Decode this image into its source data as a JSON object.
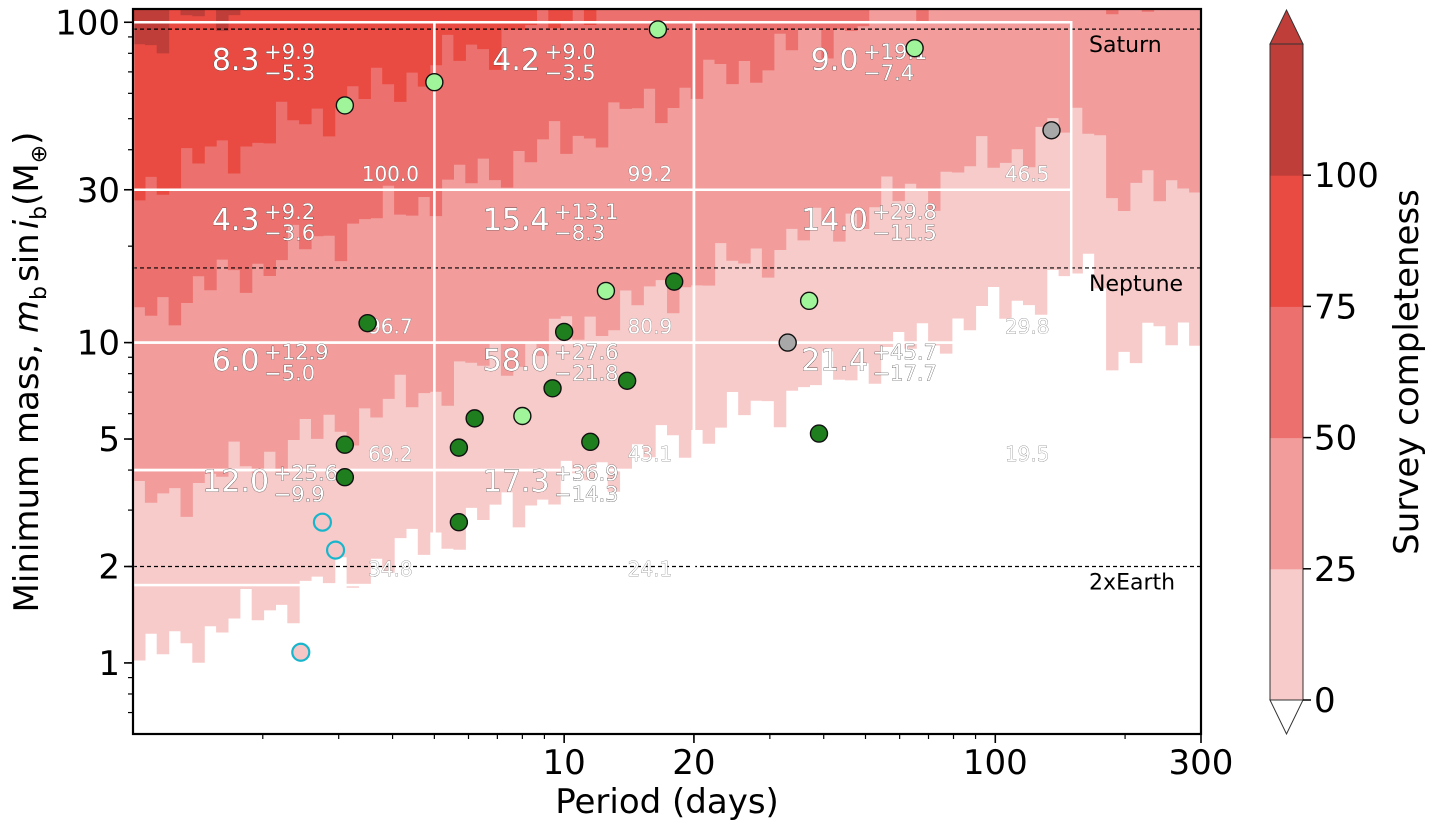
{
  "chart_data": {
    "type": "heatmap",
    "title": "",
    "xlabel": "Period (days)",
    "ylabel": "Minimum mass, m_b sin i_b (M_⊕)",
    "ylabel_parts": {
      "prefix": "Minimum mass, ",
      "m": "m",
      "b1": "b",
      "sin": "sin",
      "i": "i",
      "b2": "b",
      "open": "(M",
      "sub": "⊕",
      "close": ")"
    },
    "xscale": "log",
    "yscale": "log",
    "xlim": [
      1.0,
      300
    ],
    "ylim": [
      0.6,
      110
    ],
    "x_ticks": [
      {
        "value": 10,
        "label": "10"
      },
      {
        "value": 20,
        "label": "20"
      },
      {
        "value": 100,
        "label": "100"
      },
      {
        "value": 300,
        "label": "300"
      }
    ],
    "y_ticks": [
      {
        "value": 1,
        "label": "1"
      },
      {
        "value": 2,
        "label": "2"
      },
      {
        "value": 5,
        "label": "5"
      },
      {
        "value": 10,
        "label": "10"
      },
      {
        "value": 30,
        "label": "30"
      },
      {
        "value": 100,
        "label": "100"
      }
    ],
    "colorbar": {
      "label": "Survey completeness",
      "ticks": [
        "0",
        "25",
        "50",
        "75",
        "100"
      ],
      "levels": [
        0,
        25,
        50,
        75,
        100
      ],
      "colors": [
        "#f7cbca",
        "#f29d9c",
        "#ec716e",
        "#e94b42",
        "#bf3e39"
      ],
      "extend": "both"
    },
    "reference_lines": [
      {
        "label": "Saturn",
        "mass": 95.2
      },
      {
        "label": "Neptune",
        "mass": 17.1
      },
      {
        "label": "2xEarth",
        "mass": 2.0
      }
    ],
    "grid_boundaries": {
      "period_edges": [
        1.0,
        5.0,
        20.0
      ],
      "period_edge_outer": 150,
      "mass_edges": [
        1.75,
        4.0,
        10.0,
        30.0,
        100.0
      ]
    },
    "cells": [
      {
        "period": [
          1,
          5
        ],
        "mass": [
          30,
          100
        ],
        "occurrence": "8.3",
        "err_plus": "+9.9",
        "err_minus": "−5.3",
        "completeness": "100.0"
      },
      {
        "period": [
          5,
          20
        ],
        "mass": [
          30,
          100
        ],
        "occurrence": "4.2",
        "err_plus": "+9.0",
        "err_minus": "−3.5",
        "completeness": "99.2"
      },
      {
        "period": [
          20,
          150
        ],
        "mass": [
          30,
          100
        ],
        "occurrence": "9.0",
        "err_plus": "+19.1",
        "err_minus": "−7.4",
        "completeness": "46.5"
      },
      {
        "period": [
          1,
          5
        ],
        "mass": [
          10,
          30
        ],
        "occurrence": "4.3",
        "err_plus": "+9.2",
        "err_minus": "−3.6",
        "completeness": "96.7"
      },
      {
        "period": [
          5,
          20
        ],
        "mass": [
          10,
          30
        ],
        "occurrence": "15.4",
        "err_plus": "+13.1",
        "err_minus": "−8.3",
        "completeness": "80.9"
      },
      {
        "period": [
          20,
          150
        ],
        "mass": [
          10,
          30
        ],
        "occurrence": "14.0",
        "err_plus": "+29.8",
        "err_minus": "−11.5",
        "completeness": "29.8"
      },
      {
        "period": [
          1,
          5
        ],
        "mass": [
          4,
          10
        ],
        "occurrence": "6.0",
        "err_plus": "+12.9",
        "err_minus": "−5.0",
        "completeness": "69.2"
      },
      {
        "period": [
          5,
          20
        ],
        "mass": [
          4,
          10
        ],
        "occurrence": "58.0",
        "err_plus": "+27.6",
        "err_minus": "−21.8",
        "completeness": "43.1"
      },
      {
        "period": [
          20,
          150
        ],
        "mass": [
          4,
          10
        ],
        "occurrence": "21.4",
        "err_plus": "+45.7",
        "err_minus": "−17.7",
        "completeness": "19.5"
      },
      {
        "period": [
          1,
          5
        ],
        "mass": [
          1.75,
          4
        ],
        "occurrence": "12.0",
        "err_plus": "+25.6",
        "err_minus": "−9.9",
        "completeness": "34.8"
      },
      {
        "period": [
          5,
          20
        ],
        "mass": [
          1.75,
          4
        ],
        "occurrence": "17.3",
        "err_plus": "+36.9",
        "err_minus": "−14.3",
        "completeness": "24.1"
      }
    ],
    "planets": [
      {
        "period": 3.1,
        "mass": 55,
        "kind": "light-green"
      },
      {
        "period": 5.0,
        "mass": 65,
        "kind": "light-green"
      },
      {
        "period": 16.5,
        "mass": 95,
        "kind": "light-green"
      },
      {
        "period": 65,
        "mass": 83,
        "kind": "light-green"
      },
      {
        "period": 135,
        "mass": 46,
        "kind": "gray"
      },
      {
        "period": 12.5,
        "mass": 14.5,
        "kind": "light-green"
      },
      {
        "period": 37,
        "mass": 13.5,
        "kind": "light-green"
      },
      {
        "period": 33,
        "mass": 10.0,
        "kind": "gray"
      },
      {
        "period": 8.0,
        "mass": 5.9,
        "kind": "light-green"
      },
      {
        "period": 18,
        "mass": 15.5,
        "kind": "dark-green"
      },
      {
        "period": 3.5,
        "mass": 11.5,
        "kind": "dark-green"
      },
      {
        "period": 10,
        "mass": 10.8,
        "kind": "dark-green"
      },
      {
        "period": 14,
        "mass": 7.6,
        "kind": "dark-green"
      },
      {
        "period": 9.4,
        "mass": 7.2,
        "kind": "dark-green"
      },
      {
        "period": 6.2,
        "mass": 5.8,
        "kind": "dark-green"
      },
      {
        "period": 11.5,
        "mass": 4.9,
        "kind": "dark-green"
      },
      {
        "period": 5.7,
        "mass": 4.7,
        "kind": "dark-green"
      },
      {
        "period": 39,
        "mass": 5.2,
        "kind": "dark-green"
      },
      {
        "period": 3.1,
        "mass": 4.8,
        "kind": "dark-green"
      },
      {
        "period": 3.1,
        "mass": 3.8,
        "kind": "dark-green"
      },
      {
        "period": 5.7,
        "mass": 2.75,
        "kind": "dark-green"
      },
      {
        "period": 2.75,
        "mass": 2.75,
        "kind": "open-cyan"
      },
      {
        "period": 2.95,
        "mass": 2.25,
        "kind": "open-cyan"
      },
      {
        "period": 2.45,
        "mass": 1.08,
        "kind": "open-cyan"
      }
    ]
  }
}
